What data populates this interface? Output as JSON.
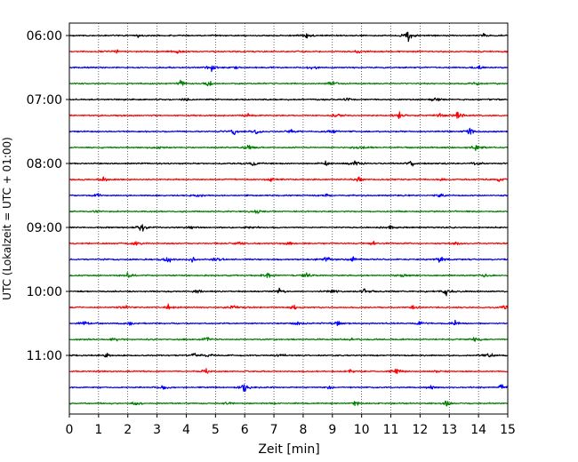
{
  "chart_data": {
    "type": "line",
    "title": "",
    "xlabel": "Zeit  [min]",
    "ylabel": "UTC (Lokalzeit = UTC + 01:00)",
    "xlim": [
      0,
      15
    ],
    "x_ticks": [
      "0",
      "1",
      "2",
      "3",
      "4",
      "5",
      "6",
      "7",
      "8",
      "9",
      "10",
      "11",
      "12",
      "13",
      "14",
      "15"
    ],
    "y_ticks": [
      "06:00",
      "07:00",
      "08:00",
      "09:00",
      "10:00",
      "11:00"
    ],
    "grid": "vertical dotted",
    "legend": "none",
    "row_start": "06:00",
    "row_step_min": 15,
    "color_cycle": [
      "#000000",
      "#ff0000",
      "#0000ff",
      "#008000"
    ],
    "series": [
      {
        "start": "06:00",
        "bursts": [
          [
            11.6,
            3.0
          ],
          [
            8.1,
            1.2
          ],
          [
            2.4,
            1.0
          ],
          [
            14.2,
            0.9
          ]
        ]
      },
      {
        "start": "06:15",
        "bursts": [
          [
            1.6,
            1.2
          ],
          [
            3.7,
            1.0
          ],
          [
            9.9,
            0.8
          ]
        ]
      },
      {
        "start": "06:30",
        "bursts": [
          [
            4.9,
            2.0
          ],
          [
            8.3,
            1.5
          ],
          [
            14.0,
            1.8
          ],
          [
            5.7,
            0.8
          ]
        ]
      },
      {
        "start": "06:45",
        "bursts": [
          [
            3.8,
            2.0
          ],
          [
            4.8,
            1.4
          ],
          [
            9.0,
            1.6
          ],
          [
            13.9,
            1.2
          ]
        ]
      },
      {
        "start": "07:00",
        "bursts": [
          [
            12.5,
            1.6
          ],
          [
            4.0,
            0.9
          ],
          [
            9.5,
            0.9
          ]
        ]
      },
      {
        "start": "07:15",
        "bursts": [
          [
            9.2,
            1.8
          ],
          [
            11.3,
            1.6
          ],
          [
            13.3,
            2.6
          ],
          [
            12.7,
            1.6
          ],
          [
            6.1,
            1.0
          ]
        ]
      },
      {
        "start": "07:30",
        "bursts": [
          [
            5.6,
            2.0
          ],
          [
            6.4,
            1.3
          ],
          [
            9.0,
            1.4
          ],
          [
            13.7,
            1.6
          ],
          [
            7.6,
            1.0
          ]
        ]
      },
      {
        "start": "07:45",
        "bursts": [
          [
            10.0,
            2.2
          ],
          [
            13.9,
            1.6
          ],
          [
            6.1,
            1.4
          ],
          [
            3.1,
            0.9
          ]
        ]
      },
      {
        "start": "08:00",
        "bursts": [
          [
            6.3,
            1.4
          ],
          [
            8.8,
            1.6
          ],
          [
            9.8,
            1.9
          ],
          [
            11.7,
            1.3
          ],
          [
            14.0,
            1.1
          ]
        ]
      },
      {
        "start": "08:15",
        "bursts": [
          [
            1.2,
            1.2
          ],
          [
            6.9,
            1.1
          ],
          [
            9.9,
            1.5
          ],
          [
            14.7,
            1.0
          ],
          [
            12.7,
            0.8
          ]
        ]
      },
      {
        "start": "08:30",
        "bursts": [
          [
            1.0,
            1.1
          ],
          [
            4.4,
            0.9
          ],
          [
            8.8,
            1.0
          ],
          [
            12.7,
            0.9
          ]
        ]
      },
      {
        "start": "08:45",
        "bursts": [
          [
            6.4,
            1.2
          ],
          [
            0.9,
            0.7
          ]
        ]
      },
      {
        "start": "09:00",
        "bursts": [
          [
            2.5,
            2.4
          ],
          [
            6.2,
            1.0
          ],
          [
            4.2,
            0.8
          ],
          [
            11.0,
            0.8
          ]
        ]
      },
      {
        "start": "09:15",
        "bursts": [
          [
            2.3,
            1.5
          ],
          [
            5.8,
            1.0
          ],
          [
            7.5,
            0.9
          ],
          [
            10.4,
            1.2
          ],
          [
            13.2,
            0.9
          ]
        ]
      },
      {
        "start": "09:30",
        "bursts": [
          [
            3.4,
            1.6
          ],
          [
            4.2,
            1.3
          ],
          [
            5.1,
            1.4
          ],
          [
            8.8,
            1.8
          ],
          [
            9.7,
            1.2
          ],
          [
            12.7,
            1.3
          ]
        ]
      },
      {
        "start": "09:45",
        "bursts": [
          [
            2.0,
            1.2
          ],
          [
            6.8,
            1.4
          ],
          [
            8.1,
            1.6
          ],
          [
            11.4,
            1.2
          ],
          [
            14.2,
            1.0
          ]
        ]
      },
      {
        "start": "10:00",
        "bursts": [
          [
            4.4,
            1.1
          ],
          [
            7.2,
            1.3
          ],
          [
            10.1,
            1.9
          ],
          [
            12.9,
            1.6
          ],
          [
            9.0,
            1.0
          ]
        ]
      },
      {
        "start": "10:15",
        "bursts": [
          [
            1.9,
            1.4
          ],
          [
            3.4,
            1.6
          ],
          [
            5.6,
            1.2
          ],
          [
            7.7,
            1.2
          ],
          [
            14.9,
            1.4
          ],
          [
            11.8,
            0.9
          ]
        ]
      },
      {
        "start": "10:30",
        "bursts": [
          [
            0.5,
            1.7
          ],
          [
            2.1,
            1.2
          ],
          [
            7.8,
            1.3
          ],
          [
            9.2,
            1.3
          ],
          [
            13.2,
            1.1
          ],
          [
            12.0,
            1.0
          ]
        ]
      },
      {
        "start": "10:45",
        "bursts": [
          [
            4.7,
            1.4
          ],
          [
            13.9,
            1.3
          ],
          [
            1.6,
            0.8
          ],
          [
            9.6,
            0.8
          ]
        ]
      },
      {
        "start": "11:00",
        "bursts": [
          [
            1.3,
            1.1
          ],
          [
            4.3,
            1.2
          ],
          [
            4.8,
            1.2
          ],
          [
            7.2,
            1.1
          ],
          [
            14.4,
            1.0
          ]
        ]
      },
      {
        "start": "11:15",
        "bursts": [
          [
            4.7,
            1.3
          ],
          [
            9.6,
            0.8
          ],
          [
            11.2,
            1.8
          ],
          [
            12.6,
            0.8
          ]
        ]
      },
      {
        "start": "11:30",
        "bursts": [
          [
            3.2,
            1.1
          ],
          [
            6.0,
            1.9
          ],
          [
            12.4,
            1.0
          ],
          [
            14.8,
            1.4
          ],
          [
            8.9,
            0.8
          ]
        ]
      },
      {
        "start": "11:45",
        "bursts": [
          [
            2.3,
            1.1
          ],
          [
            9.8,
            1.3
          ],
          [
            12.9,
            1.5
          ],
          [
            5.4,
            0.8
          ]
        ]
      }
    ]
  }
}
